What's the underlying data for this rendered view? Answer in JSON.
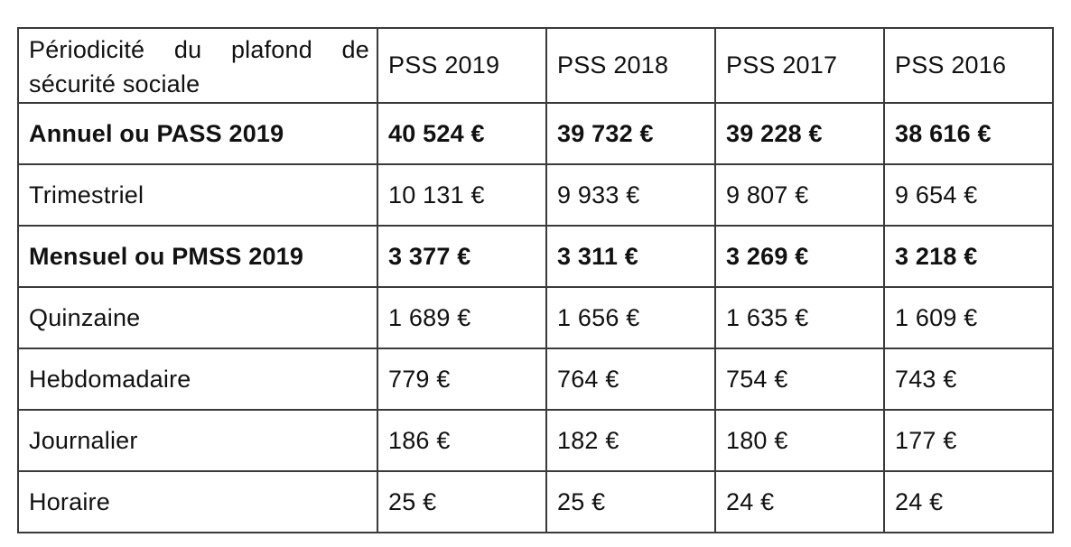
{
  "table": {
    "header": {
      "period_label": "Périodicité du plafond de sécurité sociale",
      "years": [
        "PSS 2019",
        "PSS 2018",
        "PSS 2017",
        "PSS 2016"
      ]
    },
    "rows": [
      {
        "label": "Annuel ou PASS 2019",
        "bold": true,
        "values": [
          "40 524 €",
          "39 732 €",
          "39 228 €",
          "38 616 €"
        ]
      },
      {
        "label": "Trimestriel",
        "bold": false,
        "values": [
          "10 131 €",
          "9 933 €",
          "9 807 €",
          "9 654 €"
        ]
      },
      {
        "label": "Mensuel ou PMSS 2019",
        "bold": true,
        "values": [
          "3 377 €",
          "3 311 €",
          "3 269 €",
          "3 218 €"
        ]
      },
      {
        "label": "Quinzaine",
        "bold": false,
        "values": [
          "1 689 €",
          "1 656 €",
          "1 635 €",
          "1 609 €"
        ]
      },
      {
        "label": "Hebdomadaire",
        "bold": false,
        "values": [
          "779 €",
          "764 €",
          "754 €",
          "743 €"
        ]
      },
      {
        "label": "Journalier",
        "bold": false,
        "values": [
          "186 €",
          "182 €",
          "180 €",
          "177 €"
        ]
      },
      {
        "label": "Horaire",
        "bold": false,
        "values": [
          "25 €",
          "25 €",
          "24 €",
          "24 €"
        ]
      }
    ]
  }
}
